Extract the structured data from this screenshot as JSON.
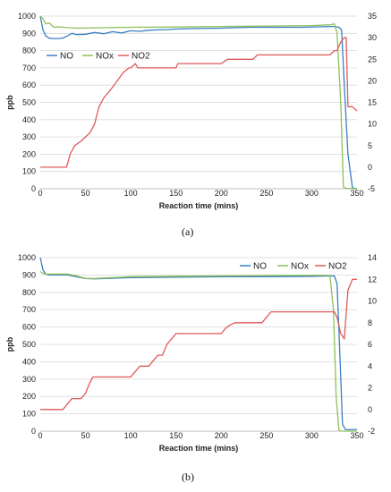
{
  "chart_data": [
    {
      "type": "line",
      "panel_label": "(a)",
      "xlabel": "Reaction time (mins)",
      "ylabel": "ppb",
      "xlim": [
        0,
        350
      ],
      "ylim": [
        0,
        1000
      ],
      "y2lim": [
        -5,
        35
      ],
      "xticks": [
        0,
        50,
        100,
        150,
        200,
        250,
        300,
        350
      ],
      "yticks": [
        0,
        100,
        200,
        300,
        400,
        500,
        600,
        700,
        800,
        900,
        1000
      ],
      "y2ticks": [
        -5,
        0,
        5,
        10,
        15,
        20,
        25,
        30,
        35
      ],
      "grid": true,
      "legend": "left",
      "series": [
        {
          "name": "NO",
          "axis": "left",
          "color": "#3b7fc4",
          "x": [
            0,
            3,
            6,
            10,
            15,
            20,
            25,
            30,
            35,
            40,
            50,
            60,
            70,
            80,
            90,
            100,
            110,
            120,
            130,
            140,
            150,
            170,
            200,
            230,
            260,
            290,
            320,
            325,
            330,
            333,
            336,
            340,
            345,
            350
          ],
          "y": [
            1000,
            920,
            885,
            872,
            870,
            870,
            873,
            885,
            900,
            893,
            895,
            905,
            898,
            910,
            902,
            915,
            912,
            918,
            920,
            922,
            925,
            928,
            930,
            935,
            935,
            935,
            940,
            940,
            935,
            920,
            600,
            200,
            5,
            0
          ]
        },
        {
          "name": "NOx",
          "axis": "left",
          "color": "#8dc05a",
          "x": [
            0,
            3,
            6,
            10,
            15,
            20,
            30,
            40,
            60,
            100,
            150,
            200,
            250,
            300,
            320,
            325,
            328,
            332,
            335,
            338,
            350
          ],
          "y": [
            1000,
            985,
            955,
            960,
            935,
            938,
            933,
            930,
            932,
            935,
            937,
            940,
            942,
            945,
            950,
            955,
            900,
            500,
            10,
            2,
            0
          ]
        },
        {
          "name": "NO2",
          "axis": "right",
          "color": "#e05a5a",
          "x": [
            0,
            10,
            20,
            25,
            29,
            33,
            38,
            45,
            55,
            60,
            65,
            70,
            78,
            85,
            92,
            98,
            100,
            105,
            108,
            115,
            120,
            150,
            152,
            200,
            207,
            235,
            240,
            320,
            325,
            328,
            332,
            336,
            338,
            340,
            345,
            350
          ],
          "y": [
            0,
            0,
            0,
            0,
            0,
            3,
            5,
            6,
            8,
            10,
            14,
            16,
            18,
            20,
            22,
            23,
            23,
            24,
            23,
            23,
            23,
            23,
            24,
            24,
            25,
            25,
            26,
            26,
            27,
            27,
            29,
            30,
            30,
            14,
            14,
            13
          ]
        }
      ]
    },
    {
      "type": "line",
      "panel_label": "(b)",
      "xlabel": "Reaction time (mins)",
      "ylabel": "ppb",
      "xlim": [
        0,
        350
      ],
      "ylim": [
        0,
        1000
      ],
      "y2lim": [
        -2,
        14
      ],
      "xticks": [
        0,
        50,
        100,
        150,
        200,
        250,
        300,
        350
      ],
      "yticks": [
        0,
        100,
        200,
        300,
        400,
        500,
        600,
        700,
        800,
        900,
        1000
      ],
      "y2ticks": [
        -2,
        0,
        2,
        4,
        6,
        8,
        10,
        12,
        14
      ],
      "grid": true,
      "legend": "top-right",
      "series": [
        {
          "name": "NO",
          "axis": "left",
          "color": "#3b7fc4",
          "x": [
            0,
            3,
            6,
            10,
            20,
            30,
            40,
            50,
            60,
            100,
            150,
            200,
            250,
            300,
            325,
            328,
            331,
            334,
            337,
            340,
            350
          ],
          "y": [
            1000,
            930,
            905,
            900,
            900,
            900,
            890,
            880,
            878,
            885,
            887,
            890,
            890,
            892,
            895,
            850,
            450,
            40,
            10,
            8,
            10
          ]
        },
        {
          "name": "NOx",
          "axis": "left",
          "color": "#8dc05a",
          "x": [
            0,
            3,
            6,
            10,
            20,
            30,
            40,
            50,
            60,
            100,
            150,
            200,
            250,
            300,
            320,
            324,
            327,
            330,
            333,
            350
          ],
          "y": [
            920,
            910,
            905,
            905,
            905,
            905,
            895,
            880,
            880,
            890,
            893,
            895,
            897,
            898,
            898,
            700,
            200,
            5,
            0,
            0
          ]
        },
        {
          "name": "NO2",
          "axis": "right",
          "color": "#e05a5a",
          "x": [
            0,
            20,
            25,
            30,
            35,
            40,
            45,
            50,
            55,
            58,
            100,
            105,
            110,
            115,
            120,
            125,
            130,
            135,
            140,
            145,
            150,
            200,
            205,
            210,
            215,
            230,
            245,
            250,
            255,
            260,
            300,
            325,
            328,
            332,
            336,
            340,
            345,
            350
          ],
          "y": [
            0,
            0,
            0,
            0.5,
            1,
            1,
            1,
            1.5,
            2.5,
            3,
            3,
            3.5,
            4,
            4,
            4,
            4.5,
            5,
            5,
            6,
            6.5,
            7,
            7,
            7.5,
            7.8,
            8,
            8,
            8,
            8.5,
            9,
            9,
            9,
            9,
            8.5,
            7,
            6.5,
            11,
            12,
            12
          ]
        }
      ]
    }
  ]
}
